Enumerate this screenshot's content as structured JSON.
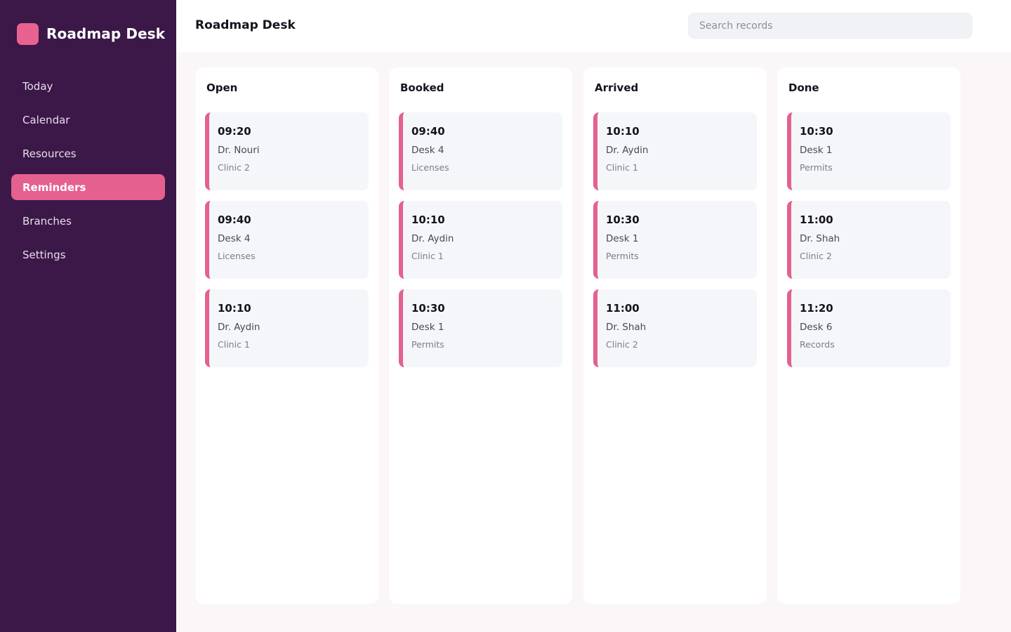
{
  "app": {
    "brand_name": "Roadmap Desk",
    "page_title": "Roadmap Desk"
  },
  "search": {
    "placeholder": "Search records",
    "value": ""
  },
  "sidebar": {
    "items": [
      {
        "label": "Today",
        "active": false
      },
      {
        "label": "Calendar",
        "active": false
      },
      {
        "label": "Resources",
        "active": false
      },
      {
        "label": "Reminders",
        "active": true
      },
      {
        "label": "Branches",
        "active": false
      },
      {
        "label": "Settings",
        "active": false
      }
    ]
  },
  "board": {
    "columns": [
      {
        "title": "Open",
        "cards": [
          {
            "time": "09:20",
            "name": "Dr. Nouri",
            "sub": "Clinic 2"
          },
          {
            "time": "09:40",
            "name": "Desk 4",
            "sub": "Licenses"
          },
          {
            "time": "10:10",
            "name": "Dr. Aydin",
            "sub": "Clinic 1"
          }
        ]
      },
      {
        "title": "Booked",
        "cards": [
          {
            "time": "09:40",
            "name": "Desk 4",
            "sub": "Licenses"
          },
          {
            "time": "10:10",
            "name": "Dr. Aydin",
            "sub": "Clinic 1"
          },
          {
            "time": "10:30",
            "name": "Desk 1",
            "sub": "Permits"
          }
        ]
      },
      {
        "title": "Arrived",
        "cards": [
          {
            "time": "10:10",
            "name": "Dr. Aydin",
            "sub": "Clinic 1"
          },
          {
            "time": "10:30",
            "name": "Desk 1",
            "sub": "Permits"
          },
          {
            "time": "11:00",
            "name": "Dr. Shah",
            "sub": "Clinic 2"
          }
        ]
      },
      {
        "title": "Done",
        "cards": [
          {
            "time": "10:30",
            "name": "Desk 1",
            "sub": "Permits"
          },
          {
            "time": "11:00",
            "name": "Dr. Shah",
            "sub": "Clinic 2"
          },
          {
            "time": "11:20",
            "name": "Desk 6",
            "sub": "Records"
          }
        ]
      }
    ]
  },
  "colors": {
    "sidebar_bg": "#3b1848",
    "accent": "#e4618f",
    "card_bg": "#f5f6fa",
    "page_bg": "#fbf6f8"
  }
}
